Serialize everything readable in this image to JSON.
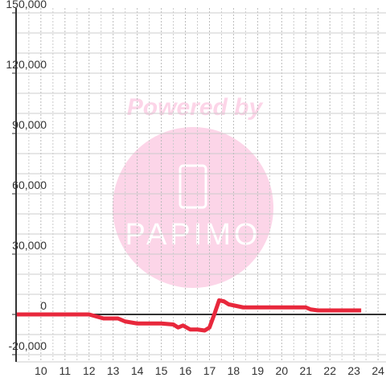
{
  "chart_data": {
    "type": "line",
    "watermark": {
      "title": "Powered by",
      "logo": "PAPIMO"
    },
    "x": [
      9,
      12,
      12.3,
      12.6,
      13.2,
      13.5,
      14,
      15,
      15.5,
      15.7,
      15.9,
      16.2,
      16.5,
      16.8,
      17,
      17.2,
      17.4,
      17.6,
      17.8,
      18.2,
      18.4,
      21,
      21.2,
      21.5,
      23.3
    ],
    "series": [
      {
        "color": "#e8283c",
        "values": [
          0,
          0,
          -1000,
          -2000,
          -2000,
          -3500,
          -4500,
          -4500,
          -5000,
          -6500,
          -5500,
          -7500,
          -7500,
          -8000,
          -6500,
          0,
          7000,
          6500,
          5000,
          4000,
          3500,
          3500,
          2500,
          2000,
          2000
        ]
      }
    ],
    "xlim": [
      8.97,
      24.33
    ],
    "xticks": [
      10,
      11,
      12,
      13,
      14,
      15,
      16,
      17,
      18,
      19,
      20,
      21,
      22,
      23,
      24
    ],
    "ylim": [
      -20000,
      150000
    ],
    "yticks": [
      {
        "value": 150000,
        "label": "150,000"
      },
      {
        "value": 120000,
        "label": "120,000"
      },
      {
        "value": 90000,
        "label": "90,000"
      },
      {
        "value": 60000,
        "label": "60,000"
      },
      {
        "value": 30000,
        "label": "30,000"
      },
      0,
      {
        "value": -20000,
        "label": "-20,000"
      }
    ],
    "y_grid": [
      -10000,
      10000,
      20000,
      40000,
      50000,
      70000,
      80000,
      100000,
      110000,
      130000,
      140000
    ],
    "x_grid": [
      9.5,
      10.5,
      11.5,
      12.5,
      13.5,
      14.5,
      15.5,
      16.5,
      17.5,
      18.5,
      19.5,
      20.5,
      21.5,
      22.5,
      23.5
    ],
    "grid": true
  }
}
